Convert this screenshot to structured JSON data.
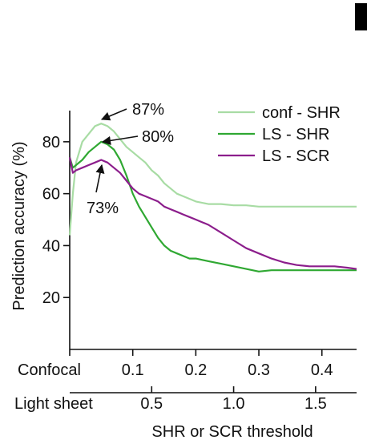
{
  "chart_data": {
    "type": "line",
    "ylabel": "Prediction accuracy (%)",
    "xlabel": "SHR or SCR threshold",
    "ylim": [
      0,
      92
    ],
    "yticks": [
      20,
      40,
      60,
      80
    ],
    "x_axis_primary": {
      "label": "Confocal",
      "range": [
        0,
        0.455
      ],
      "ticks": [
        "0.1",
        "0.2",
        "0.3",
        "0.4"
      ],
      "tick_values": [
        0.1,
        0.2,
        0.3,
        0.4
      ]
    },
    "x_axis_secondary": {
      "label": "Light sheet",
      "range": [
        0,
        1.75
      ],
      "ticks": [
        "0.5",
        "1.0",
        "1.5"
      ],
      "tick_values": [
        0.5,
        1.0,
        1.5
      ]
    },
    "grid": false,
    "legend_position": "top-right",
    "series": [
      {
        "name": "conf - SHR",
        "color": "#a8dca4",
        "x": [
          0.0,
          0.005,
          0.01,
          0.02,
          0.03,
          0.04,
          0.05,
          0.06,
          0.07,
          0.08,
          0.09,
          0.1,
          0.11,
          0.12,
          0.13,
          0.14,
          0.15,
          0.16,
          0.17,
          0.18,
          0.19,
          0.2,
          0.22,
          0.24,
          0.26,
          0.28,
          0.3,
          0.32,
          0.34,
          0.36,
          0.38,
          0.4,
          0.42,
          0.44,
          0.455
        ],
        "y": [
          44,
          60,
          72,
          80,
          83,
          86,
          87,
          86,
          84,
          81,
          78,
          76,
          74,
          72,
          69,
          67,
          64,
          62,
          60,
          59,
          58,
          57,
          56,
          56,
          55.5,
          55.5,
          55,
          55,
          55,
          55,
          55,
          55,
          55,
          55,
          55
        ]
      },
      {
        "name": "LS - SHR",
        "color": "#2fa832",
        "x": [
          0.0,
          0.005,
          0.01,
          0.02,
          0.03,
          0.04,
          0.05,
          0.06,
          0.07,
          0.08,
          0.09,
          0.1,
          0.11,
          0.12,
          0.13,
          0.14,
          0.15,
          0.16,
          0.17,
          0.18,
          0.19,
          0.2,
          0.22,
          0.24,
          0.26,
          0.28,
          0.3,
          0.32,
          0.34,
          0.36,
          0.38,
          0.4,
          0.42,
          0.44,
          0.455
        ],
        "y": [
          74,
          70,
          71,
          73,
          76,
          78,
          80,
          79,
          77,
          73,
          67,
          60,
          55,
          51,
          47,
          43,
          40,
          38,
          37,
          36,
          35,
          35,
          34,
          33,
          32,
          31,
          30,
          30.5,
          30.5,
          30.5,
          30.5,
          30.5,
          30.5,
          30.5,
          30.5
        ]
      },
      {
        "name": "LS - SCR",
        "color": "#8c1e8c",
        "x": [
          0.0,
          0.005,
          0.01,
          0.02,
          0.03,
          0.04,
          0.05,
          0.06,
          0.07,
          0.08,
          0.09,
          0.1,
          0.11,
          0.12,
          0.13,
          0.14,
          0.15,
          0.16,
          0.17,
          0.18,
          0.19,
          0.2,
          0.22,
          0.24,
          0.26,
          0.28,
          0.3,
          0.32,
          0.34,
          0.36,
          0.38,
          0.4,
          0.42,
          0.44,
          0.455
        ],
        "y": [
          74,
          68,
          69,
          70,
          71,
          72,
          73,
          72,
          70,
          68,
          65,
          62,
          60,
          59,
          58,
          57,
          55,
          54,
          53,
          52,
          51,
          50,
          48,
          45,
          42,
          39,
          37,
          35,
          33.5,
          32.5,
          32,
          32,
          32,
          31.5,
          31
        ]
      }
    ],
    "annotations": [
      {
        "text": "87%",
        "x": 0.05,
        "y": 87
      },
      {
        "text": "80%",
        "x": 0.05,
        "y": 80
      },
      {
        "text": "73%",
        "x": 0.05,
        "y": 73
      }
    ]
  }
}
